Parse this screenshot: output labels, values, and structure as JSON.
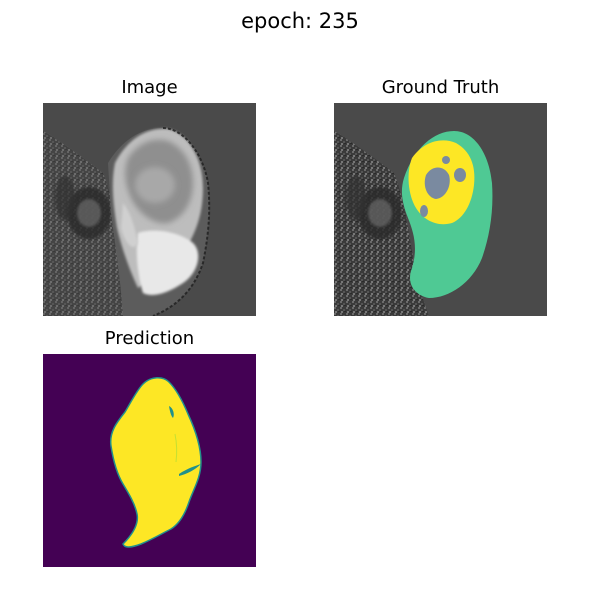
{
  "figure": {
    "title": "epoch: 235"
  },
  "panels": [
    {
      "title": "Image"
    },
    {
      "title": "Ground Truth"
    },
    {
      "title": "Prediction"
    }
  ],
  "colors": {
    "mri_background": "#4a4a4a",
    "segmentation_core": "#fde725",
    "segmentation_edema": "#4fc994",
    "prediction_background": "#440154",
    "prediction_foreground": "#fde725",
    "prediction_edge": "#21918c"
  }
}
